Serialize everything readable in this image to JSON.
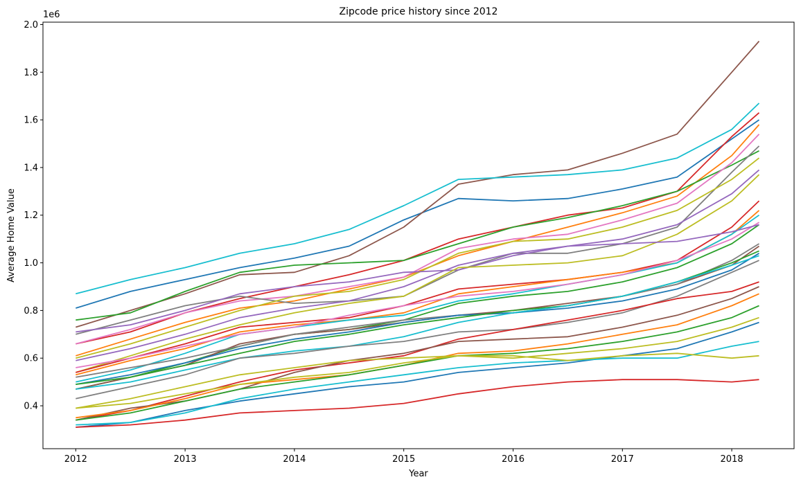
{
  "chart_data": {
    "type": "line",
    "title": "Zipcode price history since 2012",
    "xlabel": "Year",
    "ylabel": "Average Home Value",
    "y_offset_label": "1e6",
    "xlim": [
      2011.7,
      2018.57
    ],
    "ylim": [
      0.22,
      2.01
    ],
    "y_scale_note": "values in units of 1e6",
    "x_ticks": [
      2012,
      2013,
      2014,
      2015,
      2016,
      2017,
      2018
    ],
    "x_tick_labels": [
      "2012",
      "2013",
      "2014",
      "2015",
      "2016",
      "2017",
      "2018"
    ],
    "y_ticks": [
      0.4,
      0.6,
      0.8,
      1.0,
      1.2,
      1.4,
      1.6,
      1.8,
      2.0
    ],
    "y_tick_labels": [
      "0.4",
      "0.6",
      "0.8",
      "1.0",
      "1.2",
      "1.4",
      "1.6",
      "1.8",
      "2.0"
    ],
    "grid": false,
    "legend": "none",
    "x": [
      2012.0,
      2012.5,
      2013.0,
      2013.5,
      2014.0,
      2014.5,
      2015.0,
      2015.5,
      2016.0,
      2016.5,
      2017.0,
      2017.5,
      2018.0,
      2018.25
    ],
    "series": [
      {
        "color": "#1f77b4",
        "values": [
          0.81,
          0.88,
          0.93,
          0.98,
          1.02,
          1.07,
          1.18,
          1.27,
          1.26,
          1.27,
          1.31,
          1.36,
          1.52,
          1.6
        ]
      },
      {
        "color": "#8c564b",
        "values": [
          0.73,
          0.8,
          0.87,
          0.95,
          0.96,
          1.03,
          1.15,
          1.33,
          1.37,
          1.39,
          1.46,
          1.54,
          1.8,
          1.93
        ]
      },
      {
        "color": "#17becf",
        "values": [
          0.87,
          0.93,
          0.98,
          1.04,
          1.08,
          1.14,
          1.24,
          1.35,
          1.36,
          1.37,
          1.39,
          1.44,
          1.56,
          1.67
        ]
      },
      {
        "color": "#d62728",
        "values": [
          0.66,
          0.71,
          0.79,
          0.85,
          0.9,
          0.95,
          1.01,
          1.1,
          1.15,
          1.2,
          1.23,
          1.3,
          1.53,
          1.63
        ]
      },
      {
        "color": "#ff7f0e",
        "values": [
          0.61,
          0.68,
          0.75,
          0.81,
          0.84,
          0.89,
          0.94,
          1.03,
          1.09,
          1.15,
          1.21,
          1.28,
          1.45,
          1.58
        ]
      },
      {
        "color": "#2ca02c",
        "values": [
          0.76,
          0.79,
          0.88,
          0.96,
          0.99,
          1.0,
          1.01,
          1.08,
          1.15,
          1.19,
          1.24,
          1.3,
          1.41,
          1.47
        ]
      },
      {
        "color": "#e377c2",
        "values": [
          0.66,
          0.72,
          0.79,
          0.84,
          0.86,
          0.9,
          0.94,
          1.06,
          1.1,
          1.12,
          1.18,
          1.25,
          1.42,
          1.54
        ]
      },
      {
        "color": "#7f7f7f",
        "values": [
          0.7,
          0.76,
          0.82,
          0.86,
          0.83,
          0.84,
          0.86,
          0.97,
          1.04,
          1.04,
          1.08,
          1.15,
          1.38,
          1.49
        ]
      },
      {
        "color": "#bcbd22",
        "values": [
          0.6,
          0.66,
          0.73,
          0.8,
          0.86,
          0.88,
          0.93,
          1.04,
          1.09,
          1.1,
          1.15,
          1.22,
          1.35,
          1.44
        ]
      },
      {
        "color": "#9467bd",
        "values": [
          0.71,
          0.74,
          0.8,
          0.87,
          0.9,
          0.92,
          0.96,
          0.97,
          1.03,
          1.07,
          1.1,
          1.16,
          1.29,
          1.39
        ]
      },
      {
        "color": "#bcbd22",
        "values": [
          0.54,
          0.61,
          0.68,
          0.74,
          0.79,
          0.83,
          0.86,
          0.98,
          0.99,
          1.0,
          1.03,
          1.12,
          1.26,
          1.37
        ]
      },
      {
        "color": "#d62728",
        "values": [
          0.54,
          0.6,
          0.66,
          0.73,
          0.75,
          0.77,
          0.82,
          0.89,
          0.91,
          0.93,
          0.96,
          1.01,
          1.15,
          1.26
        ]
      },
      {
        "color": "#ff7f0e",
        "values": [
          0.53,
          0.59,
          0.64,
          0.71,
          0.74,
          0.76,
          0.79,
          0.87,
          0.9,
          0.93,
          0.96,
          1.0,
          1.12,
          1.22
        ]
      },
      {
        "color": "#17becf",
        "values": [
          0.5,
          0.55,
          0.62,
          0.7,
          0.73,
          0.76,
          0.78,
          0.84,
          0.87,
          0.91,
          0.95,
          1.0,
          1.12,
          1.2
        ]
      },
      {
        "color": "#e377c2",
        "values": [
          0.56,
          0.6,
          0.65,
          0.7,
          0.73,
          0.78,
          0.82,
          0.86,
          0.88,
          0.91,
          0.95,
          1.01,
          1.1,
          1.17
        ]
      },
      {
        "color": "#2ca02c",
        "values": [
          0.47,
          0.52,
          0.58,
          0.65,
          0.7,
          0.72,
          0.76,
          0.83,
          0.86,
          0.88,
          0.92,
          0.98,
          1.08,
          1.16
        ]
      },
      {
        "color": "#9467bd",
        "values": [
          0.59,
          0.64,
          0.7,
          0.77,
          0.81,
          0.84,
          0.9,
          0.99,
          1.04,
          1.07,
          1.08,
          1.09,
          1.13,
          1.16
        ]
      },
      {
        "color": "#8c564b",
        "values": [
          0.47,
          0.52,
          0.57,
          0.66,
          0.7,
          0.72,
          0.75,
          0.78,
          0.8,
          0.83,
          0.86,
          0.91,
          0.99,
          1.07
        ]
      },
      {
        "color": "#7f7f7f",
        "values": [
          0.52,
          0.56,
          0.6,
          0.65,
          0.7,
          0.73,
          0.76,
          0.78,
          0.79,
          0.82,
          0.86,
          0.91,
          1.01,
          1.08
        ]
      },
      {
        "color": "#1f77b4",
        "values": [
          0.49,
          0.53,
          0.58,
          0.64,
          0.68,
          0.71,
          0.75,
          0.78,
          0.79,
          0.81,
          0.84,
          0.89,
          0.97,
          1.04
        ]
      },
      {
        "color": "#2ca02c",
        "values": [
          0.49,
          0.52,
          0.57,
          0.62,
          0.67,
          0.7,
          0.74,
          0.77,
          0.8,
          0.82,
          0.86,
          0.92,
          1.0,
          1.05
        ]
      },
      {
        "color": "#17becf",
        "values": [
          0.47,
          0.5,
          0.55,
          0.6,
          0.63,
          0.65,
          0.69,
          0.75,
          0.79,
          0.82,
          0.86,
          0.92,
          0.99,
          1.03
        ]
      },
      {
        "color": "#7f7f7f",
        "values": [
          0.43,
          0.48,
          0.53,
          0.6,
          0.62,
          0.65,
          0.67,
          0.71,
          0.72,
          0.75,
          0.79,
          0.86,
          0.96,
          1.01
        ]
      },
      {
        "color": "#d62728",
        "values": [
          0.34,
          0.38,
          0.44,
          0.5,
          0.55,
          0.58,
          0.61,
          0.68,
          0.72,
          0.76,
          0.8,
          0.85,
          0.88,
          0.92
        ]
      },
      {
        "color": "#8c564b",
        "values": [
          0.34,
          0.39,
          0.42,
          0.47,
          0.54,
          0.59,
          0.62,
          0.67,
          0.68,
          0.69,
          0.73,
          0.78,
          0.85,
          0.9
        ]
      },
      {
        "color": "#ff7f0e",
        "values": [
          0.35,
          0.38,
          0.43,
          0.49,
          0.51,
          0.53,
          0.57,
          0.62,
          0.63,
          0.66,
          0.7,
          0.74,
          0.82,
          0.87
        ]
      },
      {
        "color": "#2ca02c",
        "values": [
          0.34,
          0.37,
          0.42,
          0.47,
          0.5,
          0.53,
          0.57,
          0.61,
          0.62,
          0.64,
          0.67,
          0.71,
          0.77,
          0.82
        ]
      },
      {
        "color": "#bcbd22",
        "values": [
          0.39,
          0.43,
          0.48,
          0.53,
          0.56,
          0.59,
          0.6,
          0.61,
          0.6,
          0.62,
          0.64,
          0.67,
          0.73,
          0.77
        ]
      },
      {
        "color": "#1f77b4",
        "values": [
          0.31,
          0.33,
          0.38,
          0.42,
          0.45,
          0.48,
          0.5,
          0.54,
          0.56,
          0.58,
          0.61,
          0.64,
          0.71,
          0.75
        ]
      },
      {
        "color": "#17becf",
        "values": [
          0.32,
          0.33,
          0.37,
          0.43,
          0.47,
          0.5,
          0.53,
          0.56,
          0.58,
          0.59,
          0.6,
          0.6,
          0.65,
          0.67
        ]
      },
      {
        "color": "#bcbd22",
        "values": [
          0.39,
          0.41,
          0.45,
          0.49,
          0.52,
          0.54,
          0.58,
          0.61,
          0.61,
          0.59,
          0.61,
          0.62,
          0.6,
          0.61
        ]
      },
      {
        "color": "#d62728",
        "values": [
          0.31,
          0.32,
          0.34,
          0.37,
          0.38,
          0.39,
          0.41,
          0.45,
          0.48,
          0.5,
          0.51,
          0.51,
          0.5,
          0.51
        ]
      }
    ]
  }
}
